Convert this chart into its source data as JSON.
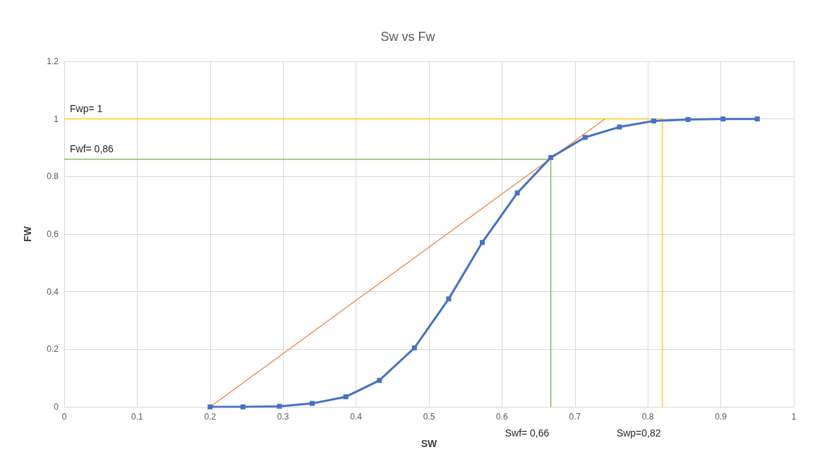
{
  "chart_data": {
    "type": "line",
    "title": "Sw vs Fw",
    "xlabel": "SW",
    "ylabel": "FW",
    "xlim": [
      0,
      1
    ],
    "xticks": [
      0,
      0.1,
      0.2,
      0.3,
      0.4,
      0.5,
      0.6,
      0.7,
      0.8,
      0.9,
      1
    ],
    "ylim": [
      0,
      1.2
    ],
    "yticks": [
      0,
      0.2,
      0.4,
      0.6,
      0.8,
      1,
      1.2
    ],
    "grid": true,
    "marker": "square",
    "series": [
      {
        "color": "#4472c4",
        "x": [
          0.2,
          0.245,
          0.295,
          0.34,
          0.386,
          0.432,
          0.48,
          0.527,
          0.573,
          0.621,
          0.667,
          0.714,
          0.761,
          0.808,
          0.855,
          0.903,
          0.95
        ],
        "values": [
          0,
          0,
          0.002,
          0.012,
          0.035,
          0.092,
          0.205,
          0.375,
          0.571,
          0.743,
          0.866,
          0.936,
          0.972,
          0.993,
          0.998,
          1,
          1
        ]
      },
      {
        "color": "#ed7d31",
        "marker": "none",
        "x": [
          0.2,
          0.741
        ],
        "values": [
          0,
          1
        ]
      },
      {
        "color": "#70ad47",
        "marker": "none",
        "x": [
          0,
          0.667,
          0.667
        ],
        "values": [
          0.86,
          0.86,
          0
        ]
      },
      {
        "color": "#ffc000",
        "marker": "none",
        "x": [
          0,
          0.82,
          0.82
        ],
        "values": [
          1,
          1,
          0
        ]
      }
    ],
    "annotations": [
      {
        "text": "Fwp= 1",
        "x": 0,
        "y": 1
      },
      {
        "text": "Fwf= 0,86",
        "x": 0,
        "y": 0.86
      },
      {
        "text": "Swf= 0,66",
        "x": 0.667,
        "y": 0
      },
      {
        "text": "Swp=0,82",
        "x": 0.82,
        "y": 0
      }
    ]
  }
}
